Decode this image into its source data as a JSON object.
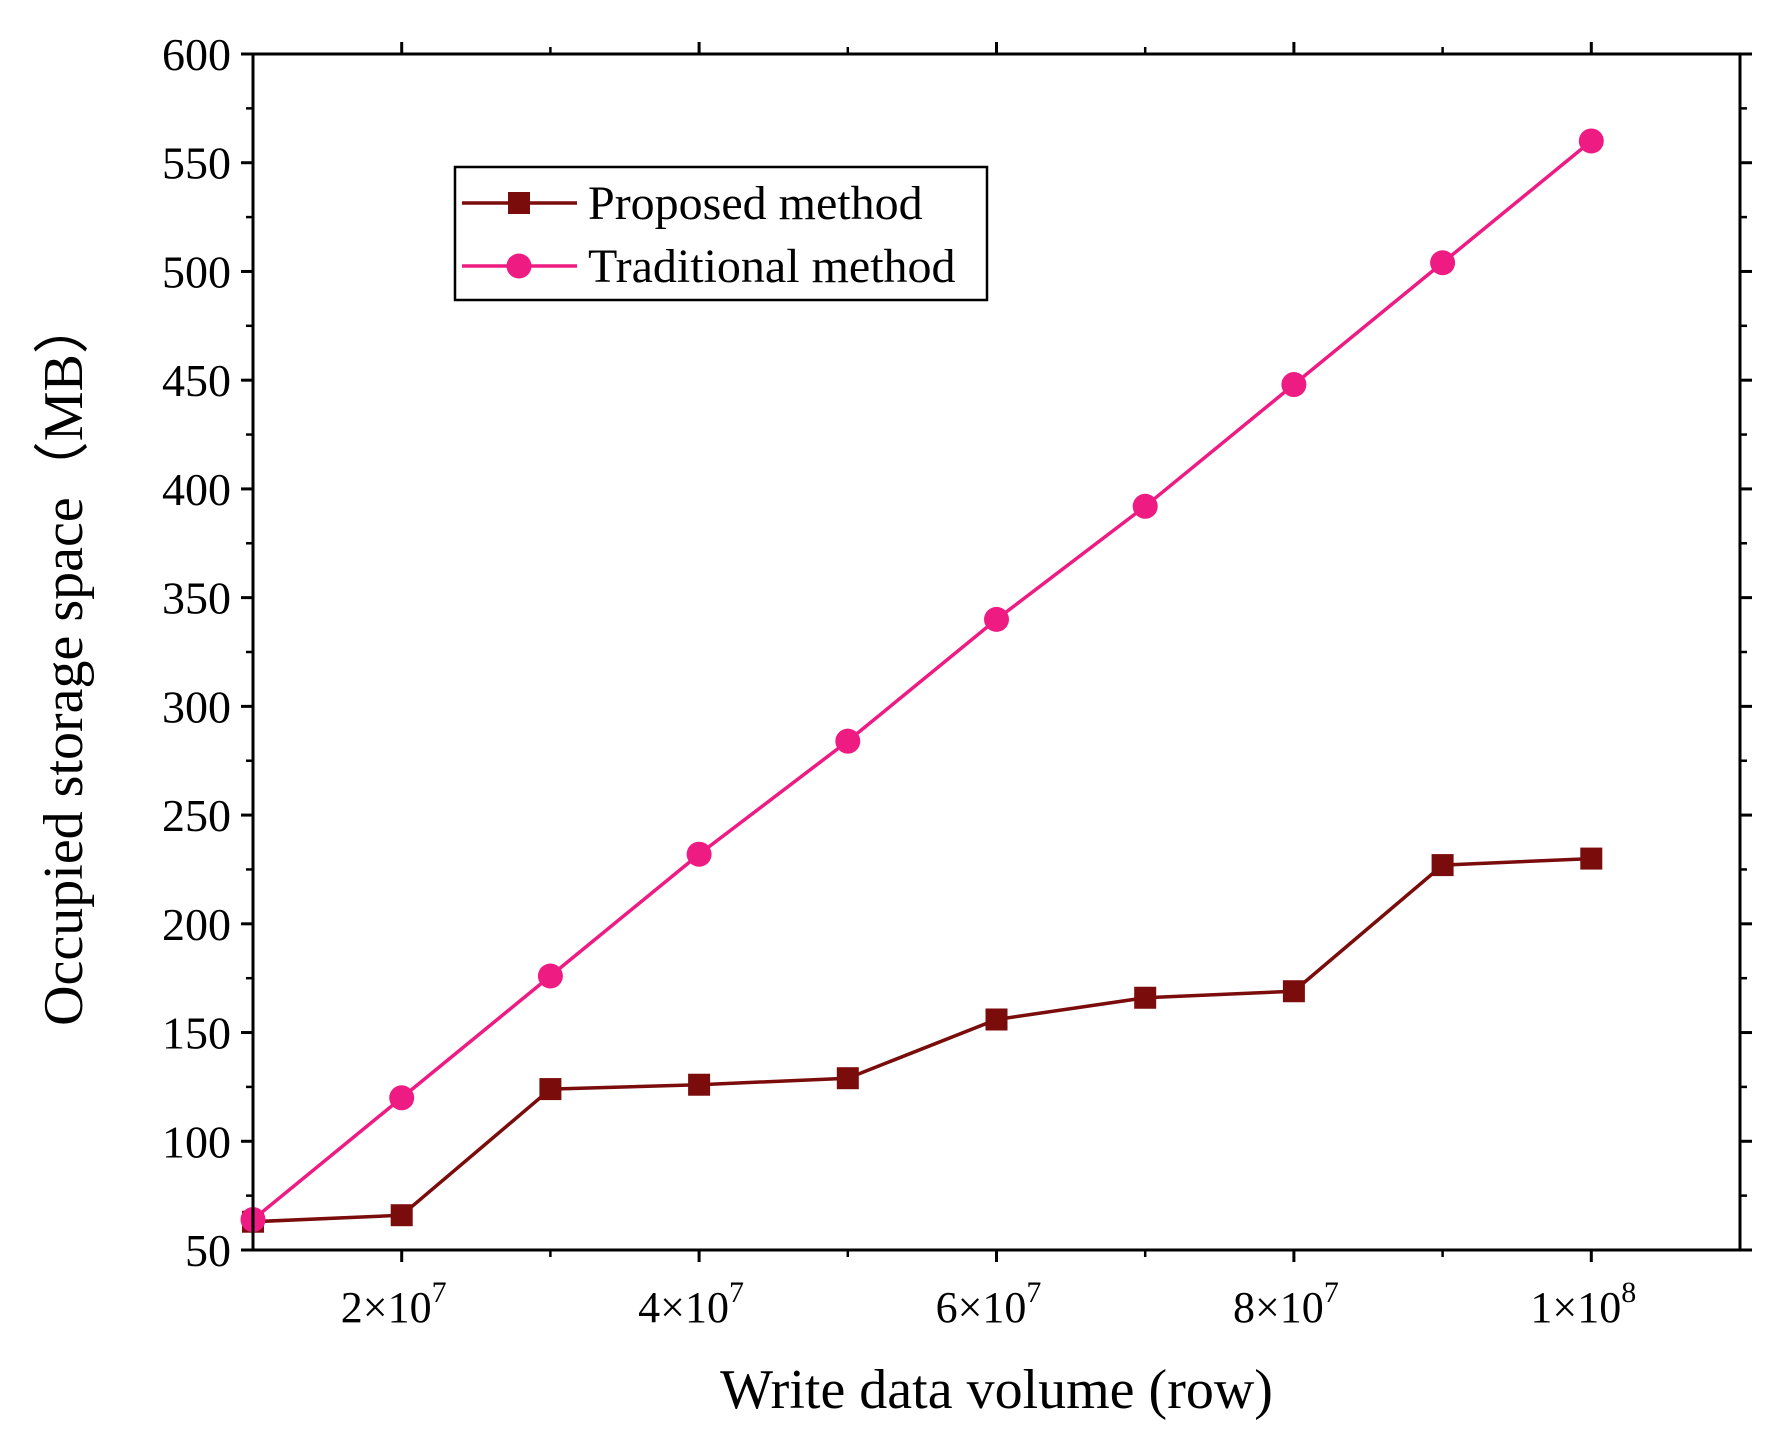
{
  "chart_data": {
    "type": "line",
    "title": "",
    "xlabel": "Write data volume (row)",
    "ylabel": "Occupied storage space（MB）",
    "xlim": [
      10000000,
      110000000
    ],
    "ylim": [
      50,
      600
    ],
    "x_ticks": [
      {
        "value": 20000000,
        "mantissa": "2",
        "exponent": "7"
      },
      {
        "value": 40000000,
        "mantissa": "4",
        "exponent": "7"
      },
      {
        "value": 60000000,
        "mantissa": "6",
        "exponent": "7"
      },
      {
        "value": 80000000,
        "mantissa": "8",
        "exponent": "7"
      },
      {
        "value": 100000000,
        "mantissa": "1",
        "exponent": "8"
      }
    ],
    "x_minor_ticks": [
      30000000,
      50000000,
      70000000,
      90000000
    ],
    "y_ticks": [
      50,
      100,
      150,
      200,
      250,
      300,
      350,
      400,
      450,
      500,
      550,
      600
    ],
    "y_minor_ticks": [
      75,
      125,
      175,
      225,
      275,
      325,
      375,
      425,
      475,
      525,
      575
    ],
    "x": [
      10000000,
      20000000,
      30000000,
      40000000,
      50000000,
      60000000,
      70000000,
      80000000,
      90000000,
      100000000
    ],
    "series": [
      {
        "name": "Proposed method",
        "marker": "square",
        "color": "#7b0c0c",
        "values": [
          63,
          66,
          124,
          126,
          129,
          156,
          166,
          169,
          227,
          230
        ]
      },
      {
        "name": "Traditional method",
        "marker": "circle",
        "color": "#ee1b82",
        "values": [
          64,
          120,
          176,
          232,
          284,
          340,
          392,
          448,
          504,
          560
        ]
      }
    ],
    "legend_position": "top-left",
    "grid": false
  }
}
